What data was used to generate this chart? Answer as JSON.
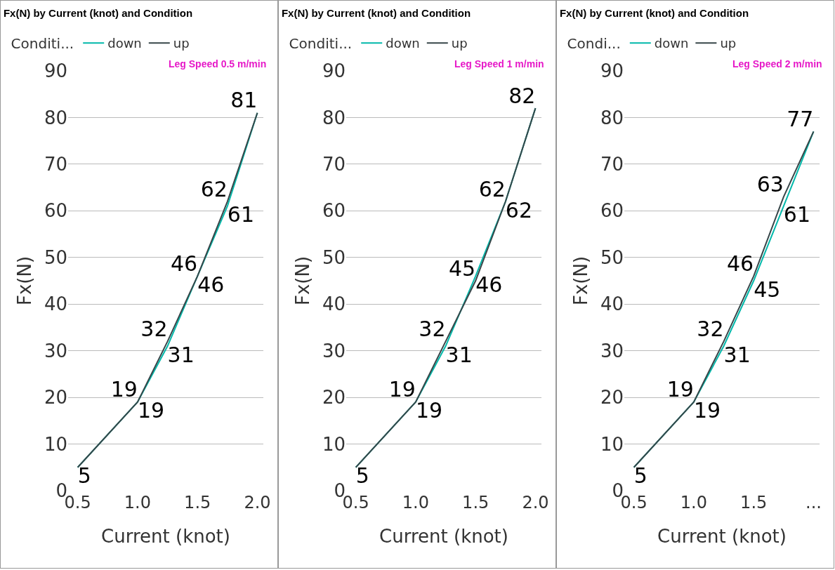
{
  "chart_data": [
    {
      "type": "line",
      "title": "Fx(N) by Current (knot) and Condition",
      "legend_title": "Conditi...",
      "xlabel": "Current (knot)",
      "ylabel": "Fx(N)",
      "annotations": [
        "Leg Speed 0.5 m/min"
      ],
      "x": [
        0.5,
        1.0,
        1.25,
        1.5,
        1.75,
        2.0
      ],
      "series": [
        {
          "name": "down",
          "color": "#01b8aa",
          "values": [
            5,
            19,
            31,
            46,
            61,
            81
          ],
          "value_labels": [
            "5",
            "19",
            "31",
            "46",
            "61",
            null
          ]
        },
        {
          "name": "up",
          "color": "#374649",
          "values": [
            5,
            19,
            32,
            46,
            62,
            81
          ],
          "value_labels": [
            null,
            "19",
            "32",
            "46",
            "62",
            "81"
          ]
        }
      ],
      "xlim": [
        0.42,
        2.05
      ],
      "xticks": [
        {
          "value": 0.5,
          "label": "0.5"
        },
        {
          "value": 1.0,
          "label": "1.0"
        },
        {
          "value": 1.5,
          "label": "1.5"
        },
        {
          "value": 2.0,
          "label": "2.0"
        }
      ],
      "ylim": [
        0,
        90
      ],
      "yticks": [
        0,
        10,
        20,
        30,
        40,
        50,
        60,
        70,
        80,
        90
      ],
      "grid": "y",
      "legend": "top left",
      "marker": "none",
      "line_style": "solid"
    },
    {
      "type": "line",
      "title": "Fx(N) by Current (knot) and Condition",
      "legend_title": "Conditi...",
      "xlabel": "Current (knot)",
      "ylabel": "Fx(N)",
      "annotations": [
        "Leg Speed 1 m/min"
      ],
      "x": [
        0.5,
        1.0,
        1.25,
        1.5,
        1.75,
        2.0
      ],
      "series": [
        {
          "name": "down",
          "color": "#01b8aa",
          "values": [
            5,
            19,
            31,
            46,
            62,
            82
          ],
          "value_labels": [
            "5",
            "19",
            "31",
            "46",
            "62",
            null
          ]
        },
        {
          "name": "up",
          "color": "#374649",
          "values": [
            5,
            19,
            32,
            45,
            62,
            82
          ],
          "value_labels": [
            null,
            "19",
            "32",
            "45",
            "62",
            "82"
          ]
        }
      ],
      "xlim": [
        0.42,
        2.05
      ],
      "xticks": [
        {
          "value": 0.5,
          "label": "0.5"
        },
        {
          "value": 1.0,
          "label": "1.0"
        },
        {
          "value": 1.5,
          "label": "1.5"
        },
        {
          "value": 2.0,
          "label": "2.0"
        }
      ],
      "ylim": [
        0,
        90
      ],
      "yticks": [
        0,
        10,
        20,
        30,
        40,
        50,
        60,
        70,
        80,
        90
      ],
      "grid": "y",
      "legend": "top left",
      "marker": "none",
      "line_style": "solid"
    },
    {
      "type": "line",
      "title": "Fx(N) by Current (knot) and Condition",
      "legend_title": "Condi...",
      "xlabel": "Current (knot)",
      "ylabel": "Fx(N)",
      "annotations": [
        "Leg Speed 2 m/min"
      ],
      "x": [
        0.5,
        1.0,
        1.25,
        1.5,
        1.75,
        2.0
      ],
      "series": [
        {
          "name": "down",
          "color": "#01b8aa",
          "values": [
            5,
            19,
            31,
            45,
            61,
            77
          ],
          "value_labels": [
            "5",
            "19",
            "31",
            "45",
            "61",
            null
          ]
        },
        {
          "name": "up",
          "color": "#374649",
          "values": [
            5,
            19,
            32,
            46,
            63,
            77
          ],
          "value_labels": [
            null,
            "19",
            "32",
            "46",
            "63",
            "77"
          ]
        }
      ],
      "xlim": [
        0.42,
        2.05
      ],
      "xticks": [
        {
          "value": 0.5,
          "label": "0.5"
        },
        {
          "value": 1.0,
          "label": "1.0"
        },
        {
          "value": 1.5,
          "label": "1.5"
        },
        {
          "value": 2.0,
          "label": "..."
        }
      ],
      "ylim": [
        0,
        90
      ],
      "yticks": [
        0,
        10,
        20,
        30,
        40,
        50,
        60,
        70,
        80,
        90
      ],
      "grid": "y",
      "legend": "top left",
      "marker": "none",
      "line_style": "solid"
    }
  ]
}
